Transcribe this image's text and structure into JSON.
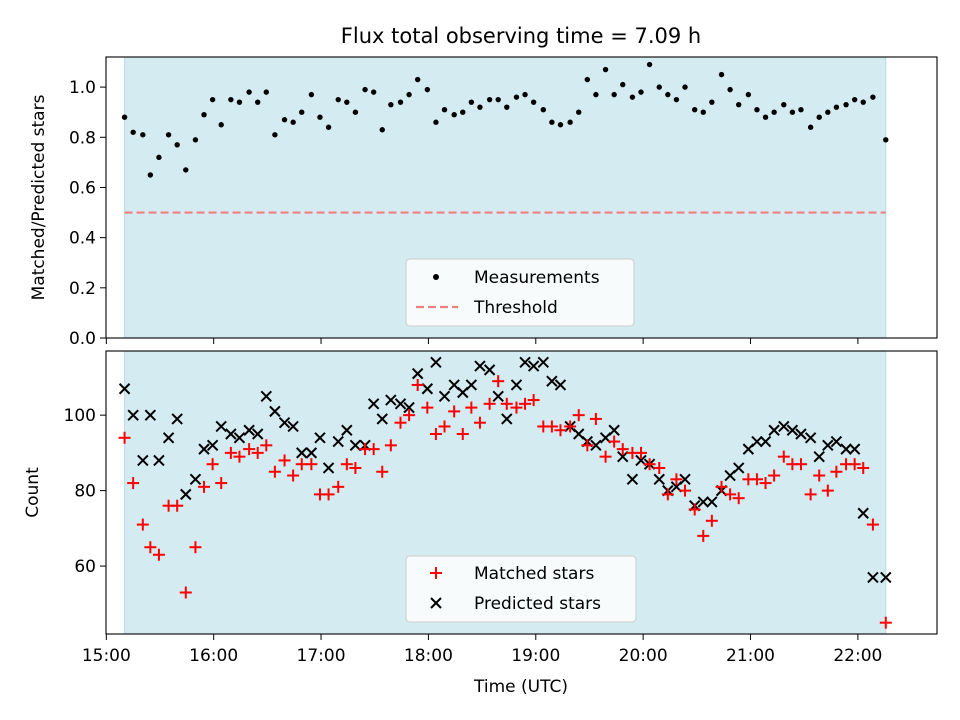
{
  "chart_data": [
    {
      "type": "scatter",
      "title": "Flux total observing time = 7.09 h",
      "xlabel": "",
      "ylabel": "Matched/Predicted stars",
      "ylim": [
        0,
        1.12
      ],
      "yticks": [
        "0.0",
        "0.2",
        "0.4",
        "0.6",
        "0.8",
        "1.0"
      ],
      "ytick_values": [
        0,
        0.2,
        0.4,
        0.6,
        0.8,
        1.0
      ],
      "xlim_hours": [
        14.997,
        22.737
      ],
      "shaded_span_hours": [
        15.17,
        22.26
      ],
      "threshold": 0.5,
      "legend": [
        "Measurements",
        "Threshold"
      ],
      "legend_position": "lower-center",
      "colors": {
        "span": "#d4ebf1",
        "span_edge": "#b6dbe6",
        "threshold": "#f08080",
        "points": "#000000"
      },
      "series": [
        {
          "name": "Measurements",
          "x": [
            15.17,
            15.25,
            15.34,
            15.41,
            15.49,
            15.58,
            15.66,
            15.74,
            15.83,
            15.91,
            15.99,
            16.07,
            16.16,
            16.24,
            16.33,
            16.41,
            16.49,
            16.57,
            16.66,
            16.74,
            16.82,
            16.91,
            16.99,
            17.07,
            17.16,
            17.24,
            17.32,
            17.41,
            17.49,
            17.57,
            17.65,
            17.74,
            17.82,
            17.9,
            17.99,
            18.07,
            18.15,
            18.24,
            18.32,
            18.4,
            18.48,
            18.57,
            18.65,
            18.73,
            18.82,
            18.9,
            18.98,
            19.07,
            19.15,
            19.23,
            19.32,
            19.4,
            19.48,
            19.56,
            19.65,
            19.73,
            19.81,
            19.9,
            19.98,
            20.06,
            20.15,
            20.23,
            20.31,
            20.39,
            20.48,
            20.56,
            20.64,
            20.73,
            20.81,
            20.89,
            20.98,
            21.06,
            21.14,
            21.22,
            21.31,
            21.39,
            21.47,
            21.56,
            21.64,
            21.72,
            21.8,
            21.89,
            21.97,
            22.05,
            22.14,
            22.26
          ],
          "y": [
            0.88,
            0.82,
            0.81,
            0.65,
            0.72,
            0.81,
            0.77,
            0.67,
            0.79,
            0.89,
            0.95,
            0.85,
            0.95,
            0.94,
            0.98,
            0.94,
            0.98,
            0.81,
            0.87,
            0.86,
            0.9,
            0.97,
            0.88,
            0.84,
            0.95,
            0.94,
            0.9,
            0.99,
            0.98,
            0.83,
            0.93,
            0.94,
            0.97,
            1.03,
            0.99,
            0.86,
            0.91,
            0.89,
            0.9,
            0.94,
            0.92,
            0.95,
            0.95,
            0.92,
            0.96,
            0.97,
            0.94,
            0.91,
            0.86,
            0.85,
            0.86,
            0.9,
            1.03,
            0.97,
            1.07,
            0.97,
            1.01,
            0.96,
            0.98,
            1.09,
            1.0,
            0.97,
            0.95,
            1.0,
            0.91,
            0.9,
            0.94,
            1.05,
            0.99,
            0.93,
            0.97,
            0.91,
            0.88,
            0.9,
            0.93,
            0.9,
            0.91,
            0.84,
            0.88,
            0.9,
            0.92,
            0.93,
            0.95,
            0.94,
            0.96,
            0.79
          ]
        }
      ]
    },
    {
      "type": "scatter",
      "title": "",
      "xlabel": "Time (UTC)",
      "ylabel": "Count",
      "ylim": [
        42,
        117
      ],
      "yticks": [
        "60",
        "80",
        "100"
      ],
      "ytick_values": [
        60,
        80,
        100
      ],
      "xlim_hours": [
        14.997,
        22.737
      ],
      "xticks": [
        "15:00",
        "16:00",
        "17:00",
        "18:00",
        "19:00",
        "20:00",
        "21:00",
        "22:00"
      ],
      "xtick_values": [
        15,
        16,
        17,
        18,
        19,
        20,
        21,
        22
      ],
      "shaded_span_hours": [
        15.17,
        22.26
      ],
      "legend": [
        "Matched stars",
        "Predicted stars"
      ],
      "legend_position": "lower-center",
      "colors": {
        "span": "#d4ebf1",
        "span_edge": "#b6dbe6",
        "matched": "#ff0000",
        "predicted": "#000000"
      },
      "series": [
        {
          "name": "Matched stars",
          "x": [
            15.17,
            15.25,
            15.34,
            15.41,
            15.49,
            15.58,
            15.66,
            15.74,
            15.83,
            15.91,
            15.99,
            16.07,
            16.16,
            16.24,
            16.33,
            16.41,
            16.49,
            16.57,
            16.66,
            16.74,
            16.82,
            16.91,
            16.99,
            17.07,
            17.16,
            17.24,
            17.32,
            17.41,
            17.49,
            17.57,
            17.65,
            17.74,
            17.82,
            17.9,
            17.99,
            18.07,
            18.15,
            18.24,
            18.32,
            18.4,
            18.48,
            18.57,
            18.65,
            18.73,
            18.82,
            18.9,
            18.98,
            19.07,
            19.15,
            19.23,
            19.32,
            19.4,
            19.48,
            19.56,
            19.65,
            19.73,
            19.81,
            19.9,
            19.98,
            20.06,
            20.15,
            20.23,
            20.31,
            20.39,
            20.48,
            20.56,
            20.64,
            20.73,
            20.81,
            20.89,
            20.98,
            21.06,
            21.14,
            21.22,
            21.31,
            21.39,
            21.47,
            21.56,
            21.64,
            21.72,
            21.8,
            21.89,
            21.97,
            22.05,
            22.14,
            22.26
          ],
          "y": [
            94,
            82,
            71,
            65,
            63,
            76,
            76,
            53,
            65,
            81,
            87,
            82,
            90,
            89,
            91,
            90,
            92,
            85,
            88,
            84,
            87,
            87,
            79,
            79,
            81,
            87,
            86,
            91,
            91,
            85,
            92,
            98,
            100,
            108,
            102,
            95,
            97,
            101,
            95,
            102,
            98,
            103,
            109,
            103,
            102,
            103,
            104,
            97,
            97,
            96,
            97,
            100,
            92,
            99,
            89,
            93,
            91,
            90,
            90,
            87,
            86,
            79,
            83,
            80,
            75,
            68,
            72,
            81,
            79,
            78,
            83,
            83,
            82,
            84,
            89,
            87,
            87,
            79,
            84,
            80,
            85,
            87,
            87,
            86,
            71,
            45
          ]
        },
        {
          "name": "Predicted stars",
          "x": [
            15.17,
            15.25,
            15.34,
            15.41,
            15.49,
            15.58,
            15.66,
            15.74,
            15.83,
            15.91,
            15.99,
            16.07,
            16.16,
            16.24,
            16.33,
            16.41,
            16.49,
            16.57,
            16.66,
            16.74,
            16.82,
            16.91,
            16.99,
            17.07,
            17.16,
            17.24,
            17.32,
            17.41,
            17.49,
            17.57,
            17.65,
            17.74,
            17.82,
            17.9,
            17.99,
            18.07,
            18.15,
            18.24,
            18.32,
            18.4,
            18.48,
            18.57,
            18.65,
            18.73,
            18.82,
            18.9,
            18.98,
            19.07,
            19.15,
            19.23,
            19.32,
            19.4,
            19.48,
            19.56,
            19.65,
            19.73,
            19.81,
            19.9,
            19.98,
            20.06,
            20.15,
            20.23,
            20.31,
            20.39,
            20.48,
            20.56,
            20.64,
            20.73,
            20.81,
            20.89,
            20.98,
            21.06,
            21.14,
            21.22,
            21.31,
            21.39,
            21.47,
            21.56,
            21.64,
            21.72,
            21.8,
            21.89,
            21.97,
            22.05,
            22.14,
            22.26
          ],
          "y": [
            107,
            100,
            88,
            100,
            88,
            94,
            99,
            79,
            83,
            91,
            92,
            97,
            95,
            94,
            96,
            95,
            105,
            101,
            98,
            97,
            90,
            90,
            94,
            86,
            93,
            96,
            92,
            92,
            103,
            99,
            104,
            103,
            102,
            111,
            107,
            114,
            105,
            108,
            106,
            108,
            113,
            112,
            105,
            99,
            108,
            114,
            113,
            114,
            109,
            108,
            97,
            95,
            93,
            92,
            94,
            96,
            89,
            83,
            88,
            87,
            83,
            80,
            81,
            83,
            76,
            77,
            77,
            80,
            84,
            86,
            91,
            93,
            93,
            96,
            97,
            96,
            95,
            94,
            89,
            92,
            93,
            91,
            91,
            74,
            57,
            57
          ]
        }
      ]
    }
  ]
}
